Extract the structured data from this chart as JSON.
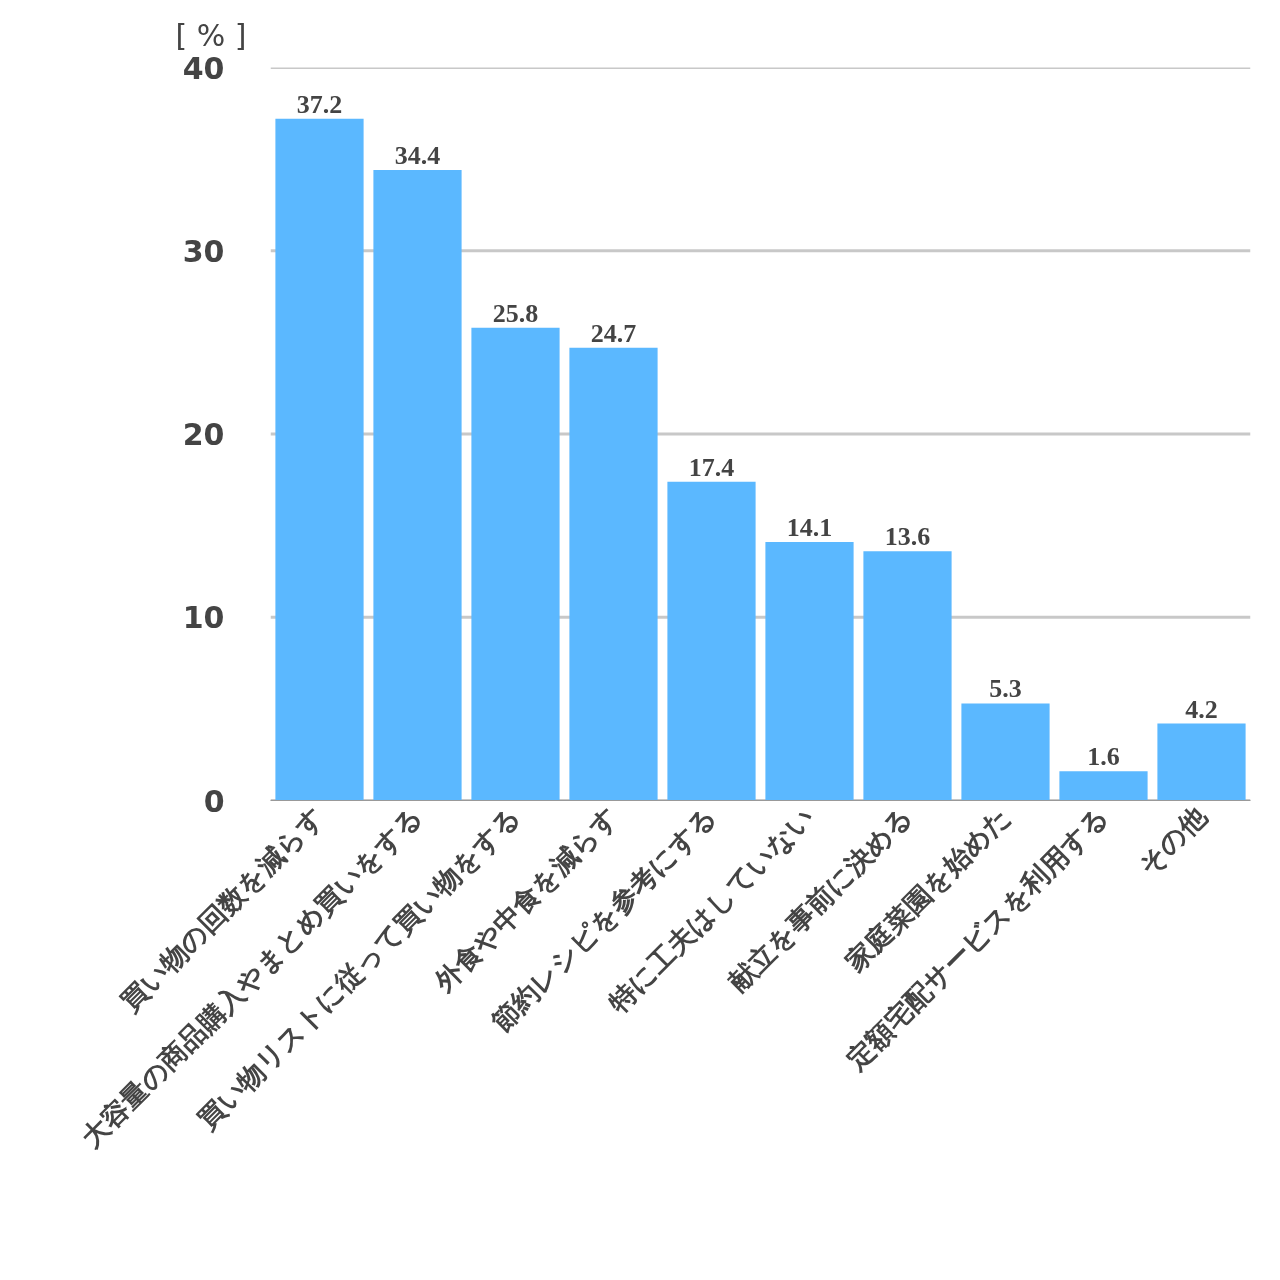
{
  "chart_data": {
    "type": "bar",
    "ylabel": "[ % ]",
    "categories": [
      "買い物の回数を減らす",
      "大容量の商品購入やまとめ買いをする",
      "買い物リストに従って買い物をする",
      "外食や中食を減らす",
      "節約レシピを参考にする",
      "特に工夫はしていない",
      "献立を事前に決める",
      "家庭菜園を始めた",
      "定額宅配サービスを利用する",
      "その他"
    ],
    "values": [
      37.2,
      34.4,
      25.8,
      24.7,
      17.4,
      14.1,
      13.6,
      5.3,
      1.6,
      4.2
    ],
    "color": "#5bb8ff",
    "ylim": [
      0,
      40
    ],
    "yticks": [
      0,
      10,
      20,
      30,
      40
    ],
    "grid": "y",
    "data_labels": true
  }
}
